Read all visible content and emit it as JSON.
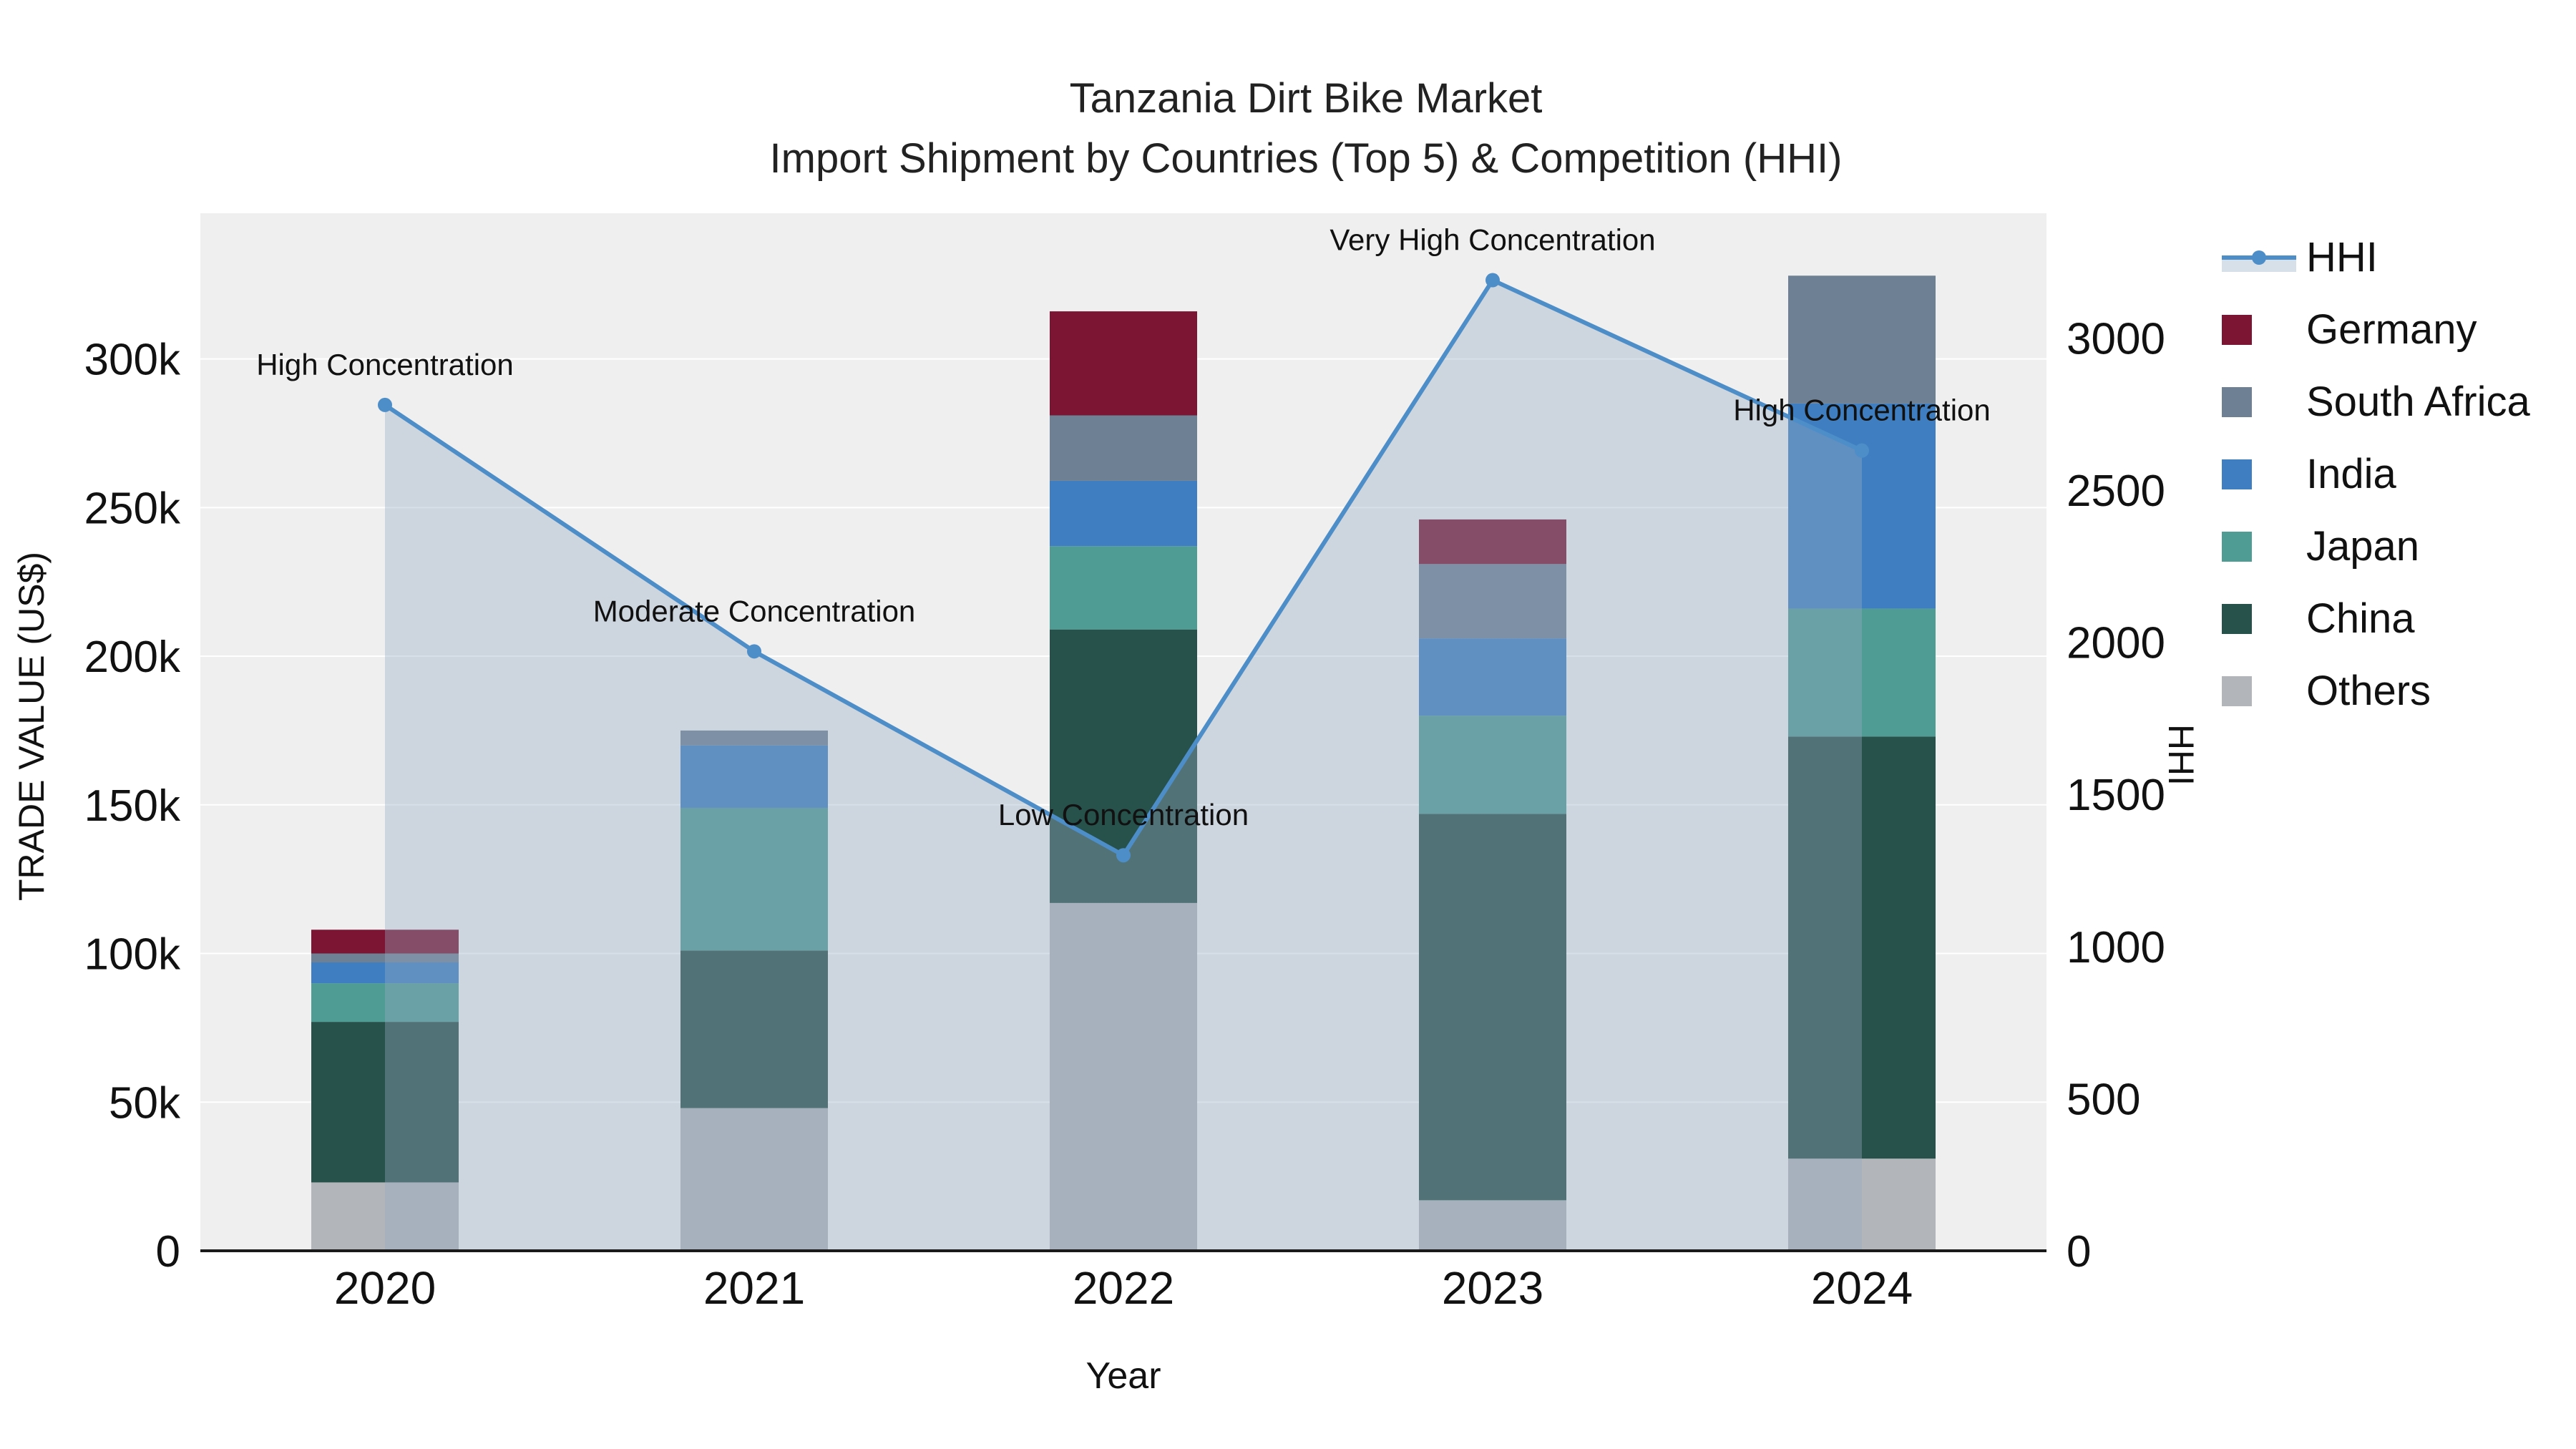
{
  "chart_data": {
    "type": "bar+line",
    "stacked": true,
    "title": "Tanzania Dirt Bike Market",
    "subtitle": "Import Shipment by Countries (Top 5) & Competition (HHI)",
    "xlabel": "Year",
    "ylabel_left": "TRADE VALUE (US$)",
    "ylabel_right": "HHI",
    "categories": [
      "2020",
      "2021",
      "2022",
      "2023",
      "2024"
    ],
    "bar_series": [
      {
        "name": "Others",
        "color": "#b2b5ba",
        "values": [
          23000,
          48000,
          117000,
          17000,
          31000
        ]
      },
      {
        "name": "China",
        "color": "#27514b",
        "values": [
          54000,
          53000,
          92000,
          130000,
          142000
        ]
      },
      {
        "name": "Japan",
        "color": "#4f9c95",
        "values": [
          13000,
          48000,
          28000,
          33000,
          43000
        ]
      },
      {
        "name": "India",
        "color": "#3f7fc1",
        "values": [
          7000,
          21000,
          22000,
          26000,
          69000
        ]
      },
      {
        "name": "South Africa",
        "color": "#6e8093",
        "values": [
          3000,
          5000,
          22000,
          25000,
          43000
        ]
      },
      {
        "name": "Germany",
        "color": "#7c1433",
        "values": [
          8000,
          0,
          35000,
          15000,
          0
        ]
      }
    ],
    "line_series": {
      "name": "HHI",
      "color": "#4e8ec8",
      "fill_color": "rgba(150,170,195,0.38)",
      "values": [
        2780,
        1970,
        1300,
        3190,
        2630
      ]
    },
    "annotations": [
      {
        "year": "2020",
        "label": "High Concentration"
      },
      {
        "year": "2021",
        "label": "Moderate Concentration"
      },
      {
        "year": "2022",
        "label": "Low Concentration"
      },
      {
        "year": "2023",
        "label": "Very High Concentration"
      },
      {
        "year": "2024",
        "label": "High Concentration"
      }
    ],
    "axes": {
      "y_left_ticks": [
        "0",
        "50k",
        "100k",
        "150k",
        "200k",
        "250k",
        "300k"
      ],
      "y_left_tick_values": [
        0,
        50000,
        100000,
        150000,
        200000,
        250000,
        300000
      ],
      "y_left_range": [
        0,
        349000
      ],
      "y_right_ticks": [
        "0",
        "500",
        "1000",
        "1500",
        "2000",
        "2500",
        "3000"
      ],
      "y_right_tick_values": [
        0,
        500,
        1000,
        1500,
        2000,
        2500,
        3000
      ],
      "y_right_range": [
        0,
        3410
      ],
      "grid": true
    },
    "legend": {
      "position": "right",
      "entries": [
        "HHI",
        "Germany",
        "South Africa",
        "India",
        "Japan",
        "China",
        "Others"
      ]
    }
  },
  "colors": {
    "plot_bg": "#efefef",
    "grid": "#ffffff",
    "text": "#111111",
    "axis_line": "#1a1a1a"
  }
}
